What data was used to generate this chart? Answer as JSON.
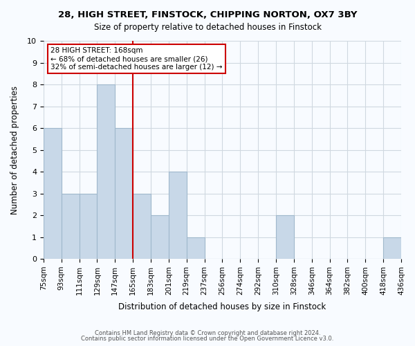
{
  "title1": "28, HIGH STREET, FINSTOCK, CHIPPING NORTON, OX7 3BY",
  "title2": "Size of property relative to detached houses in Finstock",
  "xlabel": "Distribution of detached houses by size in Finstock",
  "ylabel": "Number of detached properties",
  "bin_labels": [
    "75sqm",
    "93sqm",
    "111sqm",
    "129sqm",
    "147sqm",
    "165sqm",
    "183sqm",
    "201sqm",
    "219sqm",
    "237sqm",
    "256sqm",
    "274sqm",
    "292sqm",
    "310sqm",
    "328sqm",
    "346sqm",
    "364sqm",
    "382sqm",
    "400sqm",
    "418sqm",
    "436sqm"
  ],
  "bar_heights": [
    6,
    3,
    3,
    8,
    6,
    3,
    2,
    4,
    1,
    0,
    0,
    0,
    0,
    2,
    0,
    0,
    0,
    0,
    0,
    1
  ],
  "bar_color": "#c8d8e8",
  "bar_edge_color": "#a0b8cc",
  "vline_color": "#cc0000",
  "annotation_title": "28 HIGH STREET: 168sqm",
  "annotation_line1": "← 68% of detached houses are smaller (26)",
  "annotation_line2": "32% of semi-detached houses are larger (12) →",
  "annotation_box_color": "#ffffff",
  "annotation_box_edge": "#cc0000",
  "ylim": [
    0,
    10
  ],
  "yticks": [
    0,
    1,
    2,
    3,
    4,
    5,
    6,
    7,
    8,
    9,
    10
  ],
  "footnote1": "Contains HM Land Registry data © Crown copyright and database right 2024.",
  "footnote2": "Contains public sector information licensed under the Open Government Licence v3.0.",
  "grid_color": "#d0d8e0",
  "bg_color": "#f8fbff"
}
